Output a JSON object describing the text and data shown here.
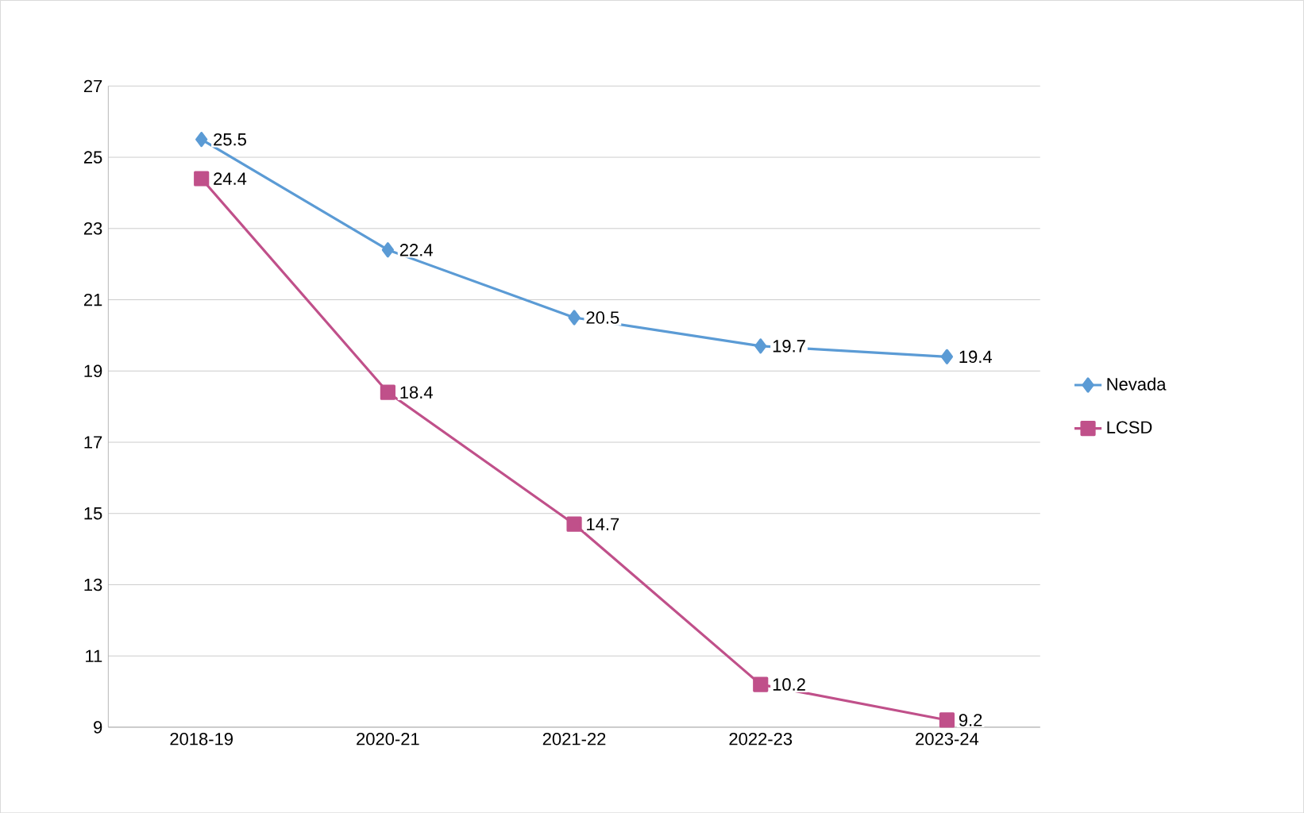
{
  "chart_data": {
    "type": "line",
    "categories": [
      "2018-19",
      "2020-21",
      "2021-22",
      "2022-23",
      "2023-24"
    ],
    "series": [
      {
        "name": "Nevada",
        "color": "#5b9bd5",
        "marker": "diamond",
        "values": [
          25.5,
          22.4,
          20.5,
          19.7,
          19.4
        ]
      },
      {
        "name": "LCSD",
        "color": "#c0508a",
        "marker": "square",
        "values": [
          24.4,
          18.4,
          14.7,
          10.2,
          9.2
        ]
      }
    ],
    "ylim": [
      9,
      27
    ],
    "yticks": [
      9,
      11,
      13,
      15,
      17,
      19,
      21,
      23,
      25,
      27
    ],
    "grid": "y",
    "legend": "right",
    "data_labels": true
  }
}
